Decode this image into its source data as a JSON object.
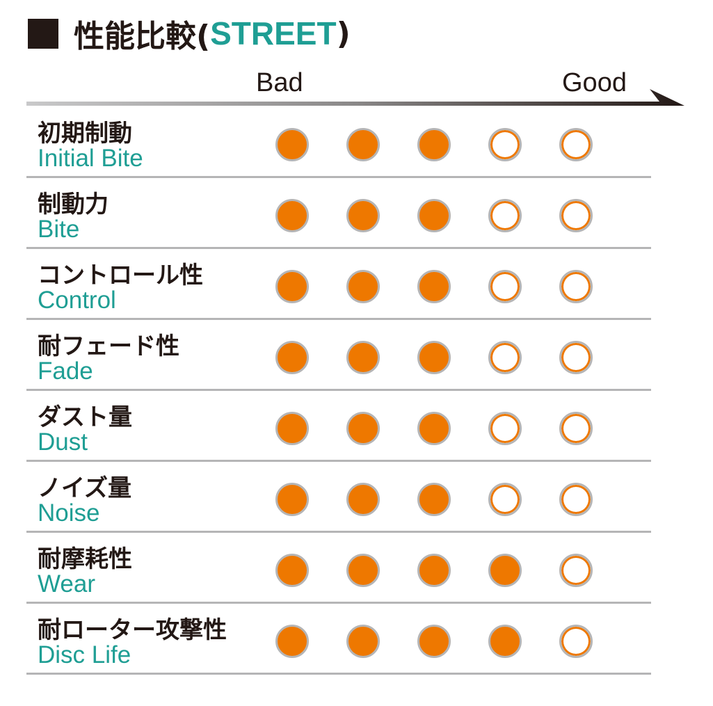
{
  "title": {
    "jp": "性能比較(",
    "en": "STREET",
    "close": ")"
  },
  "scale": {
    "bad_label": "Bad",
    "good_label": "Good"
  },
  "colors": {
    "filled": "#ee7800",
    "ring": "#b5b5b6",
    "accent": "#1f9e94",
    "text": "#231815"
  },
  "chart_data": {
    "type": "table",
    "scale_max": 5,
    "rows": [
      {
        "jp": "初期制動",
        "en": "Initial Bite",
        "value": 3
      },
      {
        "jp": "制動力",
        "en": "Bite",
        "value": 3
      },
      {
        "jp": "コントロール性",
        "en": "Control",
        "value": 3
      },
      {
        "jp": "耐フェード性",
        "en": "Fade",
        "value": 3
      },
      {
        "jp": "ダスト量",
        "en": "Dust",
        "value": 3
      },
      {
        "jp": "ノイズ量",
        "en": "Noise",
        "value": 3
      },
      {
        "jp": "耐摩耗性",
        "en": "Wear",
        "value": 4
      },
      {
        "jp": "耐ローター攻撃性",
        "en": "Disc Life",
        "value": 4
      }
    ]
  }
}
